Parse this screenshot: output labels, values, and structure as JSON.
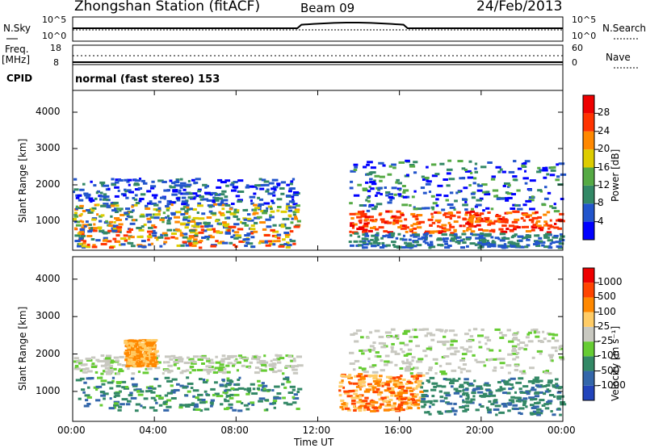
{
  "header": {
    "station": "Zhongshan Station (fitACF)",
    "beam": "Beam 09",
    "date": "24/Feb/2013"
  },
  "panels": {
    "nsky_label": "N.Sky",
    "nsky_ticks": [
      "10^5",
      "10^0"
    ],
    "nsearch_label": "N.Search",
    "nsearch_ticks": [
      "10^5",
      "10^0"
    ],
    "freq_label": "Freq.",
    "freq_unit": "[MHz]",
    "freq_ticks": [
      "18",
      "8"
    ],
    "nave_label": "Nave",
    "nave_ticks": [
      "60",
      "0"
    ],
    "cpid_label": "CPID",
    "cpid_text": "normal (fast stereo) 153"
  },
  "chart_data": [
    {
      "type": "heatmap",
      "name": "power",
      "ylabel": "Slant Range [km]",
      "xlabel": "",
      "ylim": [
        200,
        4600
      ],
      "yticks": [
        "1000",
        "2000",
        "3000",
        "4000"
      ],
      "xticks": [
        "00:00",
        "04:00",
        "08:00",
        "12:00",
        "16:00",
        "20:00",
        "00:00"
      ],
      "colorbar_label": "Power [dB]",
      "colorbar_ticks": [
        "4",
        "8",
        "12",
        "16",
        "20",
        "24",
        "28"
      ],
      "colorbar_colors": [
        "#0000ff",
        "#2255cc",
        "#338866",
        "#55aa44",
        "#ddcc00",
        "#ff8800",
        "#ff3300",
        "#ee0000"
      ]
    },
    {
      "type": "heatmap",
      "name": "velocity",
      "ylabel": "Slant Range [km]",
      "xlabel": "Time UT",
      "ylim": [
        200,
        4600
      ],
      "yticks": [
        "1000",
        "2000",
        "3000",
        "4000"
      ],
      "xticks": [
        "00:00",
        "04:00",
        "08:00",
        "12:00",
        "16:00",
        "20:00",
        "00:00"
      ],
      "colorbar_label": "Velocity [m s⁻¹]",
      "colorbar_ticks": [
        "1000",
        "500",
        "100",
        "25",
        "-25",
        "-100",
        "-500",
        "-1000"
      ],
      "colorbar_colors": [
        "#2244bb",
        "#3366aa",
        "#338866",
        "#66cc33",
        "#c8c8c0",
        "#ffcc66",
        "#ff8800",
        "#ff4400",
        "#ee0000"
      ]
    }
  ]
}
